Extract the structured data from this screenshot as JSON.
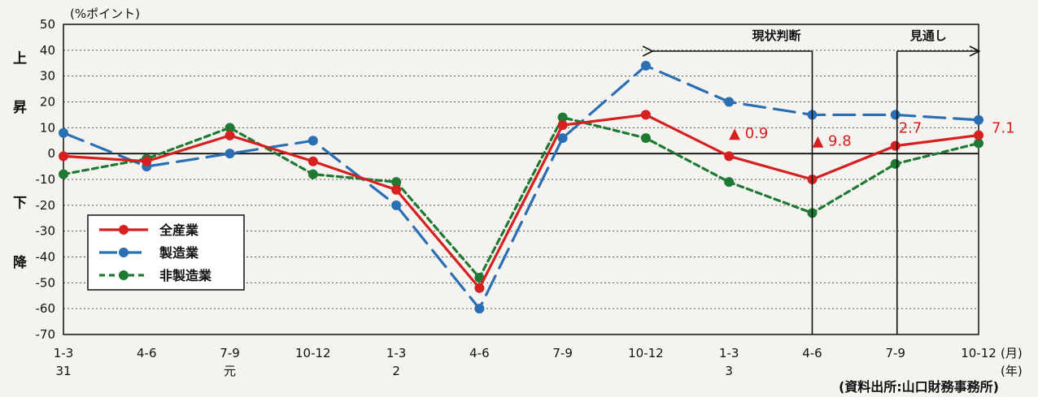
{
  "chart_data": {
    "type": "line",
    "unit_label": "(%ポイント)",
    "ylim": [
      -70,
      50
    ],
    "yticks": [
      50,
      40,
      30,
      20,
      10,
      0,
      -10,
      -20,
      -30,
      -40,
      -50,
      -60,
      -70
    ],
    "grid": true,
    "x_quarters": [
      "1-3",
      "4-6",
      "7-9",
      "10-12",
      "1-3",
      "4-6",
      "7-9",
      "10-12",
      "1-3",
      "4-6",
      "7-9",
      "10-12"
    ],
    "x_years": [
      "31",
      "",
      "元",
      "",
      "2",
      "",
      "",
      "",
      "3",
      "",
      "",
      ""
    ],
    "month_label": "(月)",
    "year_label": "(年)",
    "side_up": [
      "上",
      "昇"
    ],
    "side_down": [
      "下",
      "降"
    ],
    "series": [
      {
        "name": "全産業",
        "color": "#d61f1f",
        "style": "solid",
        "values": [
          -1,
          -3,
          7,
          -3,
          -14,
          -52,
          11,
          15,
          -1,
          -10,
          3,
          7.1
        ]
      },
      {
        "name": "製造業",
        "color": "#2a6fb3",
        "style": "longdash",
        "values": [
          8,
          -5,
          0,
          5,
          -20,
          -60,
          6,
          34,
          20,
          15,
          15,
          13
        ]
      },
      {
        "name": "非製造業",
        "color": "#1e7a33",
        "style": "shortdash",
        "values": [
          -8,
          -2,
          10,
          -8,
          -11,
          -48,
          14,
          6,
          -11,
          -23,
          -4,
          4
        ]
      }
    ],
    "annotations": [
      {
        "text": "▲ 0.9",
        "x_index": 8,
        "y": 6
      },
      {
        "text": "▲ 9.8",
        "x_index": 9,
        "y": 3
      },
      {
        "text": "2.7",
        "x_index": 10,
        "y": 8
      },
      {
        "text": "7.1",
        "x_index": 11,
        "y": 8
      }
    ],
    "bracket_current": {
      "text": "現状判断",
      "from_index": 8,
      "to_index": 9
    },
    "bracket_forecast": {
      "text": "見通し",
      "from_index": 10,
      "to_index": 11
    },
    "source": "(資料出所:山口財務事務所)"
  }
}
